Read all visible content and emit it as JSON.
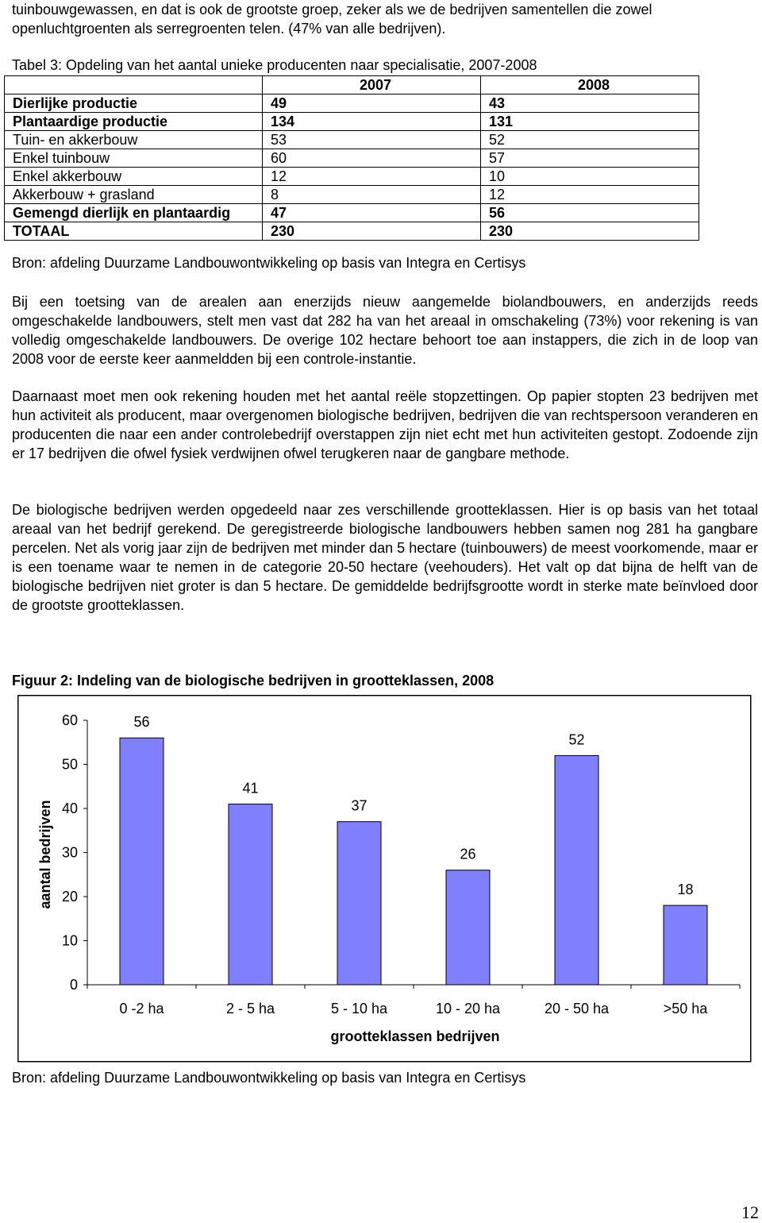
{
  "intro": "tuinbouwgewassen, en dat is ook de grootste groep, zeker als we de bedrijven samentellen die zowel openluchtgroenten als serregroenten telen. (47% van alle bedrijven).",
  "table": {
    "title": "Tabel 3: Opdeling van het aantal unieke producenten naar specialisatie, 2007-2008",
    "header": [
      "2007",
      "2008"
    ],
    "rows": [
      {
        "label": "Dierlijke productie",
        "values": [
          49,
          43
        ],
        "bold": true
      },
      {
        "label": "Plantaardige productie",
        "values": [
          134,
          131
        ],
        "bold": true
      },
      {
        "label": "Tuin- en akkerbouw",
        "values": [
          53,
          52
        ],
        "bold": false
      },
      {
        "label": "Enkel tuinbouw",
        "values": [
          60,
          57
        ],
        "bold": false
      },
      {
        "label": "Enkel akkerbouw",
        "values": [
          12,
          10
        ],
        "bold": false
      },
      {
        "label": "Akkerbouw + grasland",
        "values": [
          8,
          12
        ],
        "bold": false
      },
      {
        "label": "Gemengd dierlijk en plantaardig",
        "values": [
          47,
          56
        ],
        "bold": true
      },
      {
        "label": "TOTAAL",
        "values": [
          230,
          230
        ],
        "bold": true
      }
    ],
    "source": "Bron: afdeling Duurzame Landbouwontwikkeling op basis van Integra en Certisys"
  },
  "paragraphs": [
    "Bij een toetsing van de arealen aan enerzijds nieuw aangemelde biolandbouwers, en anderzijds reeds omgeschakelde landbouwers, stelt men vast dat 282 ha van het areaal in omschakeling (73%) voor rekening is van volledig omgeschakelde landbouwers. De overige 102 hectare behoort toe aan instappers, die zich in de loop van 2008 voor de eerste keer aanmeldden bij een controle-instantie.",
    "Daarnaast moet men ook rekening houden met het aantal reële stopzettingen. Op papier stopten 23 bedrijven met hun activiteit als producent, maar overgenomen biologische bedrijven, bedrijven die van rechtspersoon veranderen en producenten die naar een ander controlebedrijf overstappen zijn niet echt met hun activiteiten gestopt. Zodoende zijn er 17 bedrijven die ofwel fysiek verdwijnen ofwel terugkeren naar de gangbare methode.",
    "De biologische bedrijven werden opgedeeld naar zes verschillende grootteklassen. Hier is op basis van het totaal areaal van het bedrijf gerekend. De geregistreerde biologische landbouwers hebben samen nog 281 ha gangbare percelen. Net als vorig jaar zijn de bedrijven met minder dan 5 hectare (tuinbouwers) de meest voorkomende, maar er is een toename waar te nemen in de categorie 20-50 hectare (veehouders). Het valt op dat bijna de helft van de biologische bedrijven niet groter is dan 5 hectare. De gemiddelde bedrijfsgrootte wordt in sterke mate beïnvloed door de grootste grootteklassen."
  ],
  "chart_data": {
    "type": "bar",
    "title": "Figuur 2: Indeling van de biologische bedrijven in grootteklassen, 2008",
    "categories": [
      "0 -2 ha",
      "2 - 5 ha",
      "5 - 10 ha",
      "10 - 20 ha",
      "20 - 50 ha",
      ">50 ha"
    ],
    "values": [
      56,
      41,
      37,
      26,
      52,
      18
    ],
    "color": "#8080ff",
    "ylim": [
      0,
      60
    ],
    "yticks": [
      0,
      10,
      20,
      30,
      40,
      50,
      60
    ],
    "ylabel": "aantal bedrijven",
    "xlabel": "grootteklassen bedrijven",
    "grid": false
  },
  "figure_source": "Bron: afdeling Duurzame Landbouwontwikkeling op basis van Integra en Certisys",
  "page_number": "12"
}
